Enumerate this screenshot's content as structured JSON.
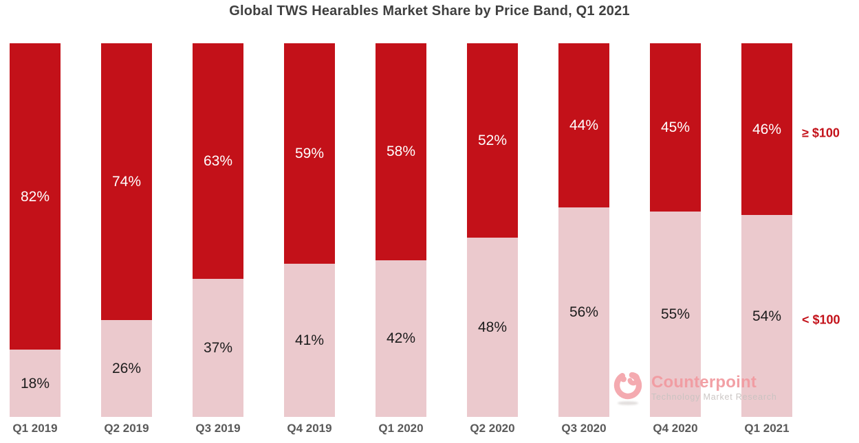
{
  "title": "Global TWS Hearables Market Share by Price Band, Q1 2021",
  "chart_data": {
    "type": "bar",
    "stacked": true,
    "categories": [
      "Q1 2019",
      "Q2 2019",
      "Q3 2019",
      "Q4 2019",
      "Q1 2020",
      "Q2 2020",
      "Q3 2020",
      "Q4 2020",
      "Q1 2021"
    ],
    "series": [
      {
        "name": "≥ $100",
        "values": [
          82,
          74,
          63,
          59,
          58,
          52,
          44,
          45,
          46
        ],
        "color": "#C31119",
        "label_color": "#FFFFFF"
      },
      {
        "name": "< $100",
        "values": [
          18,
          26,
          37,
          41,
          42,
          48,
          56,
          55,
          54
        ],
        "color": "#EBC9CD",
        "label_color": "#1C1C1C"
      }
    ],
    "value_suffix": "%",
    "ylim": [
      0,
      100
    ],
    "grid": false,
    "legend_position": "right-of-last-bar",
    "legend_text_color": "#C31119",
    "xlabel": "",
    "ylabel": ""
  },
  "watermark": {
    "brand": "Counterpoint",
    "tagline": "Technology Market Research",
    "brand_color": "#F29BA1",
    "tagline_color": "#C9C3C1",
    "logo_color": "#F4A6AC"
  }
}
